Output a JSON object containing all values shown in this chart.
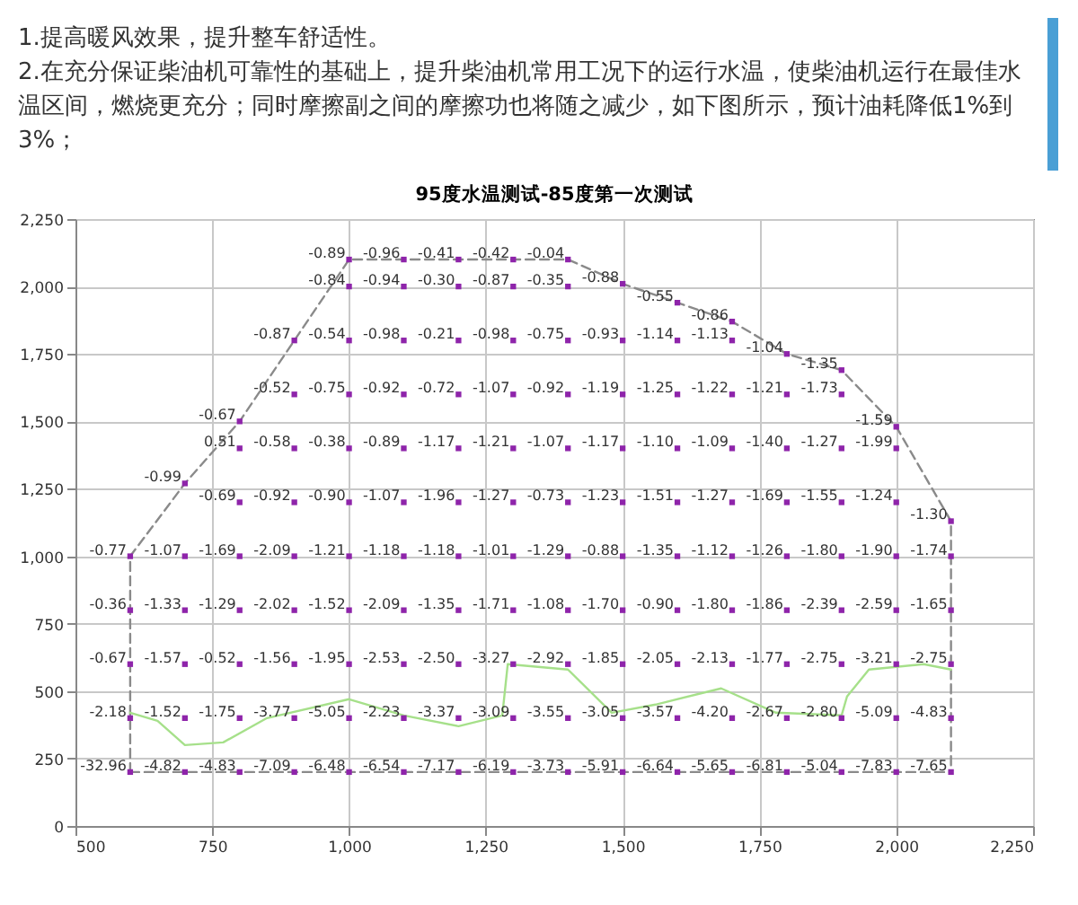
{
  "chart_data": {
    "type": "scatter",
    "title": "95度水温测试-85度第一次测试",
    "annotations": [
      "1.提高暖风效果，提升整车舒适性。",
      "2.在充分保证柴油机可靠性的基础上，提升柴油机常用工况下的运行水温，使柴油机运行在最佳水温区间，燃烧更充分；同时摩擦副之间的摩擦功也将随之减少，如下图所示，预计油耗降低1%到3%；",
      {
        "text": "-0.89",
        "x": 1000,
        "y": 2100
      },
      {
        "text": "-0.96",
        "x": 1100,
        "y": 2100
      },
      {
        "text": "-0.41",
        "x": 1200,
        "y": 2100
      },
      {
        "text": "-0.42",
        "x": 1300,
        "y": 2100
      },
      {
        "text": "-0.04",
        "x": 1400,
        "y": 2100
      },
      {
        "text": "-0.88",
        "x": 1500,
        "y": 2010
      },
      {
        "text": "-0.55",
        "x": 1600,
        "y": 1940
      },
      {
        "text": "-0.86",
        "x": 1700,
        "y": 1870
      },
      {
        "text": "-1.04",
        "x": 1800,
        "y": 1750
      },
      {
        "text": "-1.35",
        "x": 1900,
        "y": 1690
      },
      {
        "text": "-1.59",
        "x": 2000,
        "y": 1480
      },
      {
        "text": "-1.30",
        "x": 2100,
        "y": 1130
      },
      {
        "text": "-0.99",
        "x": 700,
        "y": 1270
      },
      {
        "text": "-0.67",
        "x": 800,
        "y": 1500
      },
      {
        "text": "-0.84",
        "x": 1000,
        "y": 2000
      },
      {
        "text": "-0.94",
        "x": 1100,
        "y": 2000
      },
      {
        "text": "-0.30",
        "x": 1200,
        "y": 2000
      },
      {
        "text": "-0.87",
        "x": 1300,
        "y": 2000
      },
      {
        "text": "-0.35",
        "x": 1400,
        "y": 2000
      },
      {
        "text": "-0.87",
        "x": 900,
        "y": 1800
      },
      {
        "text": "-0.54",
        "x": 1000,
        "y": 1800
      },
      {
        "text": "-0.98",
        "x": 1100,
        "y": 1800
      },
      {
        "text": "-0.21",
        "x": 1200,
        "y": 1800
      },
      {
        "text": "-0.98",
        "x": 1300,
        "y": 1800
      },
      {
        "text": "-0.75",
        "x": 1400,
        "y": 1800
      },
      {
        "text": "-0.93",
        "x": 1500,
        "y": 1800
      },
      {
        "text": "-1.14",
        "x": 1600,
        "y": 1800
      },
      {
        "text": "-1.13",
        "x": 1700,
        "y": 1800
      },
      {
        "text": "-0.52",
        "x": 900,
        "y": 1600
      },
      {
        "text": "-0.75",
        "x": 1000,
        "y": 1600
      },
      {
        "text": "-0.92",
        "x": 1100,
        "y": 1600
      },
      {
        "text": "-0.72",
        "x": 1200,
        "y": 1600
      },
      {
        "text": "-1.07",
        "x": 1300,
        "y": 1600
      },
      {
        "text": "-0.92",
        "x": 1400,
        "y": 1600
      },
      {
        "text": "-1.19",
        "x": 1500,
        "y": 1600
      },
      {
        "text": "-1.25",
        "x": 1600,
        "y": 1600
      },
      {
        "text": "-1.22",
        "x": 1700,
        "y": 1600
      },
      {
        "text": "-1.21",
        "x": 1800,
        "y": 1600
      },
      {
        "text": "-1.73",
        "x": 1900,
        "y": 1600
      },
      {
        "text": "0.51",
        "x": 800,
        "y": 1400
      },
      {
        "text": "-0.58",
        "x": 900,
        "y": 1400
      },
      {
        "text": "-0.38",
        "x": 1000,
        "y": 1400
      },
      {
        "text": "-0.89",
        "x": 1100,
        "y": 1400
      },
      {
        "text": "-1.17",
        "x": 1200,
        "y": 1400
      },
      {
        "text": "-1.21",
        "x": 1300,
        "y": 1400
      },
      {
        "text": "-1.07",
        "x": 1400,
        "y": 1400
      },
      {
        "text": "-1.17",
        "x": 1500,
        "y": 1400
      },
      {
        "text": "-1.10",
        "x": 1600,
        "y": 1400
      },
      {
        "text": "-1.09",
        "x": 1700,
        "y": 1400
      },
      {
        "text": "-1.40",
        "x": 1800,
        "y": 1400
      },
      {
        "text": "-1.27",
        "x": 1900,
        "y": 1400
      },
      {
        "text": "-1.99",
        "x": 2000,
        "y": 1400
      },
      {
        "text": "-0.69",
        "x": 800,
        "y": 1200
      },
      {
        "text": "-0.92",
        "x": 900,
        "y": 1200
      },
      {
        "text": "-0.90",
        "x": 1000,
        "y": 1200
      },
      {
        "text": "-1.07",
        "x": 1100,
        "y": 1200
      },
      {
        "text": "-1.96",
        "x": 1200,
        "y": 1200
      },
      {
        "text": "-1.27",
        "x": 1300,
        "y": 1200
      },
      {
        "text": "-0.73",
        "x": 1400,
        "y": 1200
      },
      {
        "text": "-1.23",
        "x": 1500,
        "y": 1200
      },
      {
        "text": "-1.51",
        "x": 1600,
        "y": 1200
      },
      {
        "text": "-1.27",
        "x": 1700,
        "y": 1200
      },
      {
        "text": "-1.69",
        "x": 1800,
        "y": 1200
      },
      {
        "text": "-1.55",
        "x": 1900,
        "y": 1200
      },
      {
        "text": "-1.24",
        "x": 2000,
        "y": 1200
      },
      {
        "text": "-0.77",
        "x": 600,
        "y": 1000
      },
      {
        "text": "-1.07",
        "x": 700,
        "y": 1000
      },
      {
        "text": "-1.69",
        "x": 800,
        "y": 1000
      },
      {
        "text": "-2.09",
        "x": 900,
        "y": 1000
      },
      {
        "text": "-1.21",
        "x": 1000,
        "y": 1000
      },
      {
        "text": "-1.18",
        "x": 1100,
        "y": 1000
      },
      {
        "text": "-1.18",
        "x": 1200,
        "y": 1000
      },
      {
        "text": "-1.01",
        "x": 1300,
        "y": 1000
      },
      {
        "text": "-1.29",
        "x": 1400,
        "y": 1000
      },
      {
        "text": "-0.88",
        "x": 1500,
        "y": 1000
      },
      {
        "text": "-1.35",
        "x": 1600,
        "y": 1000
      },
      {
        "text": "-1.12",
        "x": 1700,
        "y": 1000
      },
      {
        "text": "-1.26",
        "x": 1800,
        "y": 1000
      },
      {
        "text": "-1.80",
        "x": 1900,
        "y": 1000
      },
      {
        "text": "-1.90",
        "x": 2000,
        "y": 1000
      },
      {
        "text": "-1.74",
        "x": 2100,
        "y": 1000
      },
      {
        "text": "-0.36",
        "x": 600,
        "y": 800
      },
      {
        "text": "-1.33",
        "x": 700,
        "y": 800
      },
      {
        "text": "-1.29",
        "x": 800,
        "y": 800
      },
      {
        "text": "-2.02",
        "x": 900,
        "y": 800
      },
      {
        "text": "-1.52",
        "x": 1000,
        "y": 800
      },
      {
        "text": "-2.09",
        "x": 1100,
        "y": 800
      },
      {
        "text": "-1.35",
        "x": 1200,
        "y": 800
      },
      {
        "text": "-1.71",
        "x": 1300,
        "y": 800
      },
      {
        "text": "-1.08",
        "x": 1400,
        "y": 800
      },
      {
        "text": "-1.70",
        "x": 1500,
        "y": 800
      },
      {
        "text": "-0.90",
        "x": 1600,
        "y": 800
      },
      {
        "text": "-1.80",
        "x": 1700,
        "y": 800
      },
      {
        "text": "-1.86",
        "x": 1800,
        "y": 800
      },
      {
        "text": "-2.39",
        "x": 1900,
        "y": 800
      },
      {
        "text": "-2.59",
        "x": 2000,
        "y": 800
      },
      {
        "text": "-1.65",
        "x": 2100,
        "y": 800
      },
      {
        "text": "-0.67",
        "x": 600,
        "y": 600
      },
      {
        "text": "-1.57",
        "x": 700,
        "y": 600
      },
      {
        "text": "-0.52",
        "x": 800,
        "y": 600
      },
      {
        "text": "-1.56",
        "x": 900,
        "y": 600
      },
      {
        "text": "-1.95",
        "x": 1000,
        "y": 600
      },
      {
        "text": "-2.53",
        "x": 1100,
        "y": 600
      },
      {
        "text": "-2.50",
        "x": 1200,
        "y": 600
      },
      {
        "text": "-3.27",
        "x": 1300,
        "y": 600
      },
      {
        "text": "-2.92",
        "x": 1400,
        "y": 600
      },
      {
        "text": "-1.85",
        "x": 1500,
        "y": 600
      },
      {
        "text": "-2.05",
        "x": 1600,
        "y": 600
      },
      {
        "text": "-2.13",
        "x": 1700,
        "y": 600
      },
      {
        "text": "-1.77",
        "x": 1800,
        "y": 600
      },
      {
        "text": "-2.75",
        "x": 1900,
        "y": 600
      },
      {
        "text": "-3.21",
        "x": 2000,
        "y": 600
      },
      {
        "text": "-2.75",
        "x": 2100,
        "y": 600
      },
      {
        "text": "-2.18",
        "x": 600,
        "y": 400
      },
      {
        "text": "-1.52",
        "x": 700,
        "y": 400
      },
      {
        "text": "-1.75",
        "x": 800,
        "y": 400
      },
      {
        "text": "-3.77",
        "x": 900,
        "y": 400
      },
      {
        "text": "-5.05",
        "x": 1000,
        "y": 400
      },
      {
        "text": "-2.23",
        "x": 1100,
        "y": 400
      },
      {
        "text": "-3.37",
        "x": 1200,
        "y": 400
      },
      {
        "text": "-3.09",
        "x": 1300,
        "y": 400
      },
      {
        "text": "-3.55",
        "x": 1400,
        "y": 400
      },
      {
        "text": "-3.05",
        "x": 1500,
        "y": 400
      },
      {
        "text": "-3.57",
        "x": 1600,
        "y": 400
      },
      {
        "text": "-4.20",
        "x": 1700,
        "y": 400
      },
      {
        "text": "-2.67",
        "x": 1800,
        "y": 400
      },
      {
        "text": "-2.80",
        "x": 1900,
        "y": 400
      },
      {
        "text": "-5.09",
        "x": 2000,
        "y": 400
      },
      {
        "text": "-4.83",
        "x": 2100,
        "y": 400
      },
      {
        "text": "-32.96",
        "x": 600,
        "y": 200
      },
      {
        "text": "-4.82",
        "x": 700,
        "y": 200
      },
      {
        "text": "-4.83",
        "x": 800,
        "y": 200
      },
      {
        "text": "-7.09",
        "x": 900,
        "y": 200
      },
      {
        "text": "-6.48",
        "x": 1000,
        "y": 200
      },
      {
        "text": "-6.54",
        "x": 1100,
        "y": 200
      },
      {
        "text": "-7.17",
        "x": 1200,
        "y": 200
      },
      {
        "text": "-6.19",
        "x": 1300,
        "y": 200
      },
      {
        "text": "-3.73",
        "x": 1400,
        "y": 200
      },
      {
        "text": "-5.91",
        "x": 1500,
        "y": 200
      },
      {
        "text": "-6.64",
        "x": 1600,
        "y": 200
      },
      {
        "text": "-5.65",
        "x": 1700,
        "y": 200
      },
      {
        "text": "-6.81",
        "x": 1800,
        "y": 200
      },
      {
        "text": "-5.04",
        "x": 1900,
        "y": 200
      },
      {
        "text": "-7.83",
        "x": 2000,
        "y": 200
      },
      {
        "text": "-7.65",
        "x": 2100,
        "y": 200
      }
    ],
    "xlim": [
      500,
      2250
    ],
    "xticks": [
      500,
      750,
      {
        "value": 1000,
        "label": "1,000"
      },
      {
        "value": 1250,
        "label": "1,250"
      },
      {
        "value": 1500,
        "label": "1,500"
      },
      {
        "value": 1750,
        "label": "1,750"
      },
      {
        "value": 2000,
        "label": "2,000"
      },
      {
        "value": 2250,
        "label": "2,250"
      }
    ],
    "ylim": [
      0,
      2250
    ],
    "yticks": [
      0,
      250,
      500,
      750,
      {
        "value": 1000,
        "label": "1,000"
      },
      {
        "value": 1250,
        "label": "1,250"
      },
      {
        "value": 1500,
        "label": "1,500"
      },
      {
        "value": 1750,
        "label": "1,750"
      },
      {
        "value": 2000,
        "label": "2,000"
      },
      {
        "value": 2250,
        "label": "2,250"
      }
    ],
    "grid": true,
    "series": [
      {
        "type": "line",
        "color": "#8a8a8a",
        "line_style": "dashed",
        "marker": "none",
        "x": [
          600,
          600,
          700,
          800,
          900,
          1000,
          1100,
          1200,
          1300,
          1400,
          1500,
          1600,
          1700,
          1800,
          1900,
          2000,
          2100,
          2100
        ],
        "values": [
          200,
          1000,
          1270,
          1500,
          1800,
          2100,
          2100,
          2100,
          2100,
          2100,
          2010,
          1940,
          1870,
          1750,
          1690,
          1480,
          1130,
          200
        ]
      },
      {
        "type": "line",
        "color": "#8a8a8a",
        "line_style": "dashed",
        "marker": "none",
        "x": [
          600,
          2100
        ],
        "values": [
          200,
          200
        ]
      },
      {
        "type": "line",
        "color": "#a6e08a",
        "line_style": "solid",
        "marker": "none",
        "x": [
          600,
          650,
          700,
          770,
          850,
          1000,
          1100,
          1200,
          1280,
          1290,
          1400,
          1480,
          1560,
          1680,
          1780,
          1900,
          1910,
          1950,
          2050,
          2100
        ],
        "values": [
          420,
          390,
          300,
          310,
          400,
          470,
          410,
          370,
          410,
          600,
          580,
          420,
          450,
          510,
          420,
          410,
          480,
          580,
          600,
          580
        ]
      },
      {
        "color": "#8e24aa",
        "marker": "square",
        "x": [
          1000,
          1100,
          1200,
          1300,
          1400,
          1500,
          1600,
          1700,
          1800,
          1900,
          2000,
          2100,
          700,
          800,
          1000,
          1100,
          1200,
          1300,
          1400,
          900,
          1000,
          1100,
          1200,
          1300,
          1400,
          1500,
          1600,
          1700,
          900,
          1000,
          1100,
          1200,
          1300,
          1400,
          1500,
          1600,
          1700,
          1800,
          1900,
          800,
          900,
          1000,
          1100,
          1200,
          1300,
          1400,
          1500,
          1600,
          1700,
          1800,
          1900,
          2000,
          800,
          900,
          1000,
          1100,
          1200,
          1300,
          1400,
          1500,
          1600,
          1700,
          1800,
          1900,
          2000,
          600,
          700,
          800,
          900,
          1000,
          1100,
          1200,
          1300,
          1400,
          1500,
          1600,
          1700,
          1800,
          1900,
          2000,
          2100,
          600,
          700,
          800,
          900,
          1000,
          1100,
          1200,
          1300,
          1400,
          1500,
          1600,
          1700,
          1800,
          1900,
          2000,
          2100,
          600,
          700,
          800,
          900,
          1000,
          1100,
          1200,
          1300,
          1400,
          1500,
          1600,
          1700,
          1800,
          1900,
          2000,
          2100,
          600,
          700,
          800,
          900,
          1000,
          1100,
          1200,
          1300,
          1400,
          1500,
          1600,
          1700,
          1800,
          1900,
          2000,
          2100,
          600,
          700,
          800,
          900,
          1000,
          1100,
          1200,
          1300,
          1400,
          1500,
          1600,
          1700,
          1800,
          1900,
          2000,
          2100
        ],
        "values": [
          2100,
          2100,
          2100,
          2100,
          2100,
          2010,
          1940,
          1870,
          1750,
          1690,
          1480,
          1130,
          1270,
          1500,
          2000,
          2000,
          2000,
          2000,
          2000,
          1800,
          1800,
          1800,
          1800,
          1800,
          1800,
          1800,
          1800,
          1800,
          1600,
          1600,
          1600,
          1600,
          1600,
          1600,
          1600,
          1600,
          1600,
          1600,
          1600,
          1400,
          1400,
          1400,
          1400,
          1400,
          1400,
          1400,
          1400,
          1400,
          1400,
          1400,
          1400,
          1400,
          1200,
          1200,
          1200,
          1200,
          1200,
          1200,
          1200,
          1200,
          1200,
          1200,
          1200,
          1200,
          1200,
          1000,
          1000,
          1000,
          1000,
          1000,
          1000,
          1000,
          1000,
          1000,
          1000,
          1000,
          1000,
          1000,
          1000,
          1000,
          1000,
          800,
          800,
          800,
          800,
          800,
          800,
          800,
          800,
          800,
          800,
          800,
          800,
          800,
          800,
          800,
          800,
          600,
          600,
          600,
          600,
          600,
          600,
          600,
          600,
          600,
          600,
          600,
          600,
          600,
          600,
          600,
          600,
          400,
          400,
          400,
          400,
          400,
          400,
          400,
          400,
          400,
          400,
          400,
          400,
          400,
          400,
          400,
          400,
          200,
          200,
          200,
          200,
          200,
          200,
          200,
          200,
          200,
          200,
          200,
          200,
          200,
          200,
          200,
          200
        ]
      }
    ]
  }
}
